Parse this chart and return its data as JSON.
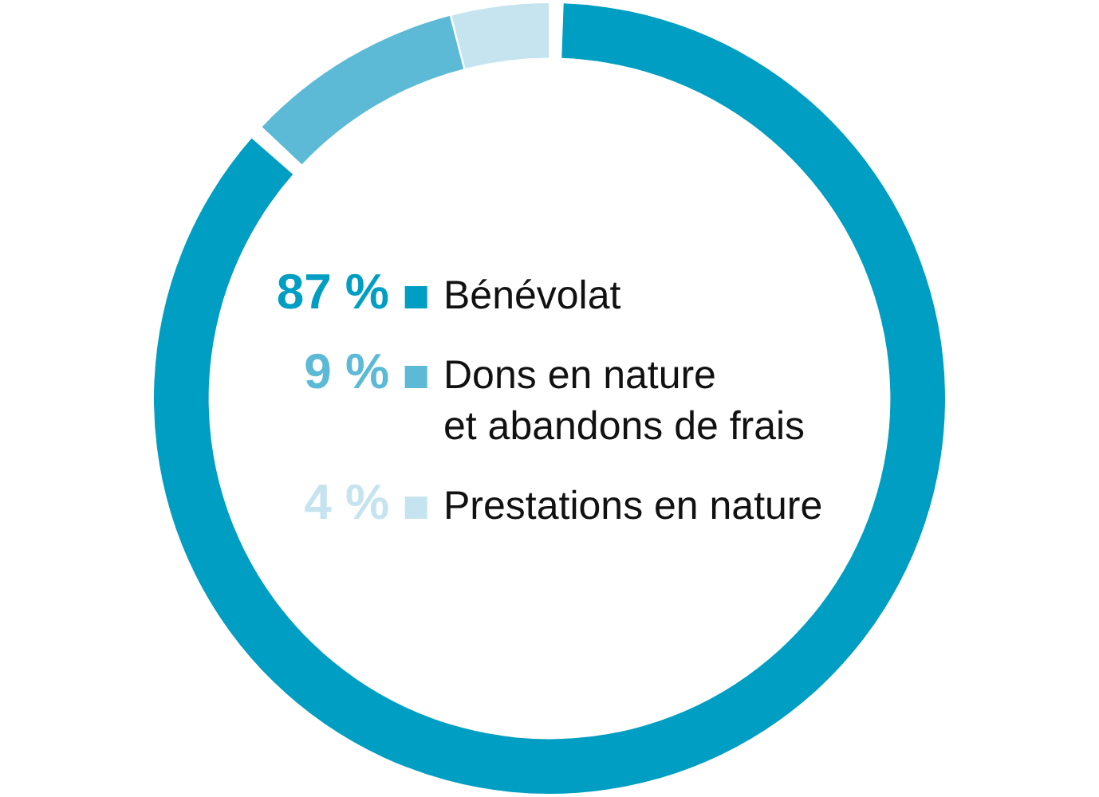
{
  "chart_data": {
    "type": "donut",
    "categories": [
      "Bénévolat",
      "Dons en nature\net abandons de frais",
      "Prestations en nature"
    ],
    "values": [
      87,
      9,
      4
    ],
    "colors": [
      "#009ec2",
      "#5cbad6",
      "#c5e4ef"
    ],
    "value_labels": [
      "87 %",
      "9 %",
      "4 %"
    ],
    "legend": "center"
  }
}
